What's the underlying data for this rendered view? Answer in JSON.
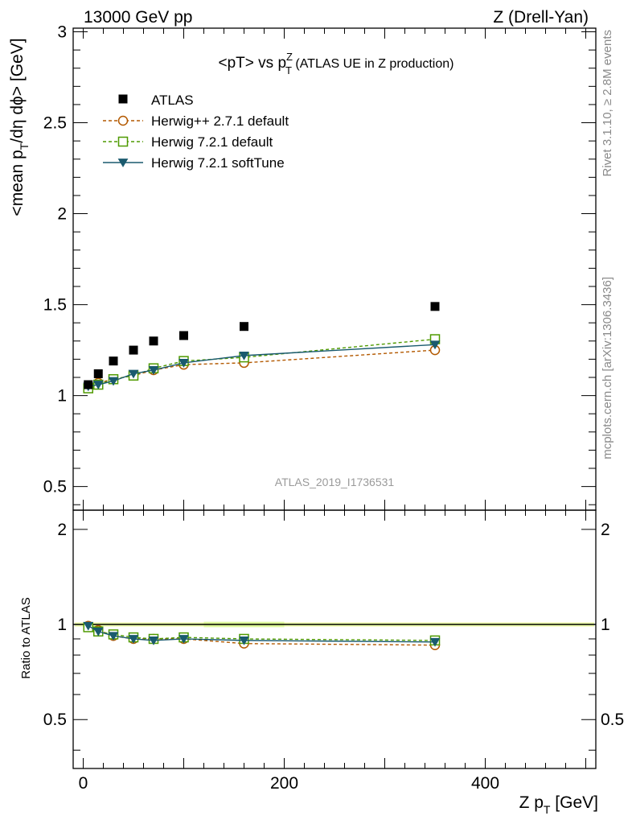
{
  "header": {
    "left": "13000 GeV pp",
    "right": "Z (Drell-Yan)"
  },
  "side_text": {
    "upper": "Rivet 3.1.10, ≥ 2.8M events",
    "lower": "mcplots.cern.ch [arXiv:1306.3436]"
  },
  "watermark": "ATLAS_2019_I1736531",
  "chart_data": {
    "type": "line",
    "title": "<pT> vs p_T^Z (ATLAS UE in Z production)",
    "xlabel": "Z p_T [GeV]",
    "ylabel": "<mean p_T/dη dϕ> [GeV]",
    "ratio_ylabel": "Ratio to ATLAS",
    "xlim": [
      -10,
      510
    ],
    "ylim": [
      0.37,
      3.02
    ],
    "ratio_ylim": [
      0.35,
      2.3
    ],
    "x_ticks": [
      0,
      200,
      400
    ],
    "y_ticks": [
      0.5,
      1,
      1.5,
      2,
      2.5,
      3
    ],
    "ratio_ticks": [
      0.5,
      1,
      2
    ],
    "x": [
      5,
      15,
      30,
      50,
      70,
      100,
      160,
      350
    ],
    "data_name": "ATLAS",
    "data_values": [
      1.06,
      1.12,
      1.19,
      1.25,
      1.3,
      1.33,
      1.38,
      1.49
    ],
    "series": [
      {
        "name": "Herwig++ 2.7.1 default",
        "color": "#b35900",
        "marker": "circle-open",
        "dashed": true,
        "values": [
          1.05,
          1.07,
          1.09,
          1.11,
          1.14,
          1.17,
          1.18,
          1.25
        ],
        "ratio": [
          0.99,
          0.96,
          0.92,
          0.9,
          0.9,
          0.9,
          0.87,
          0.86
        ]
      },
      {
        "name": "Herwig 7.2.1 default",
        "color": "#4f9a00",
        "marker": "square-open",
        "dashed": true,
        "values": [
          1.04,
          1.06,
          1.09,
          1.11,
          1.15,
          1.19,
          1.21,
          1.31
        ],
        "ratio": [
          0.98,
          0.95,
          0.93,
          0.91,
          0.9,
          0.91,
          0.9,
          0.89
        ]
      },
      {
        "name": "Herwig 7.2.1 softTune",
        "color": "#1a5a6e",
        "marker": "triangle-down-filled",
        "dashed": false,
        "values": [
          1.05,
          1.06,
          1.08,
          1.12,
          1.14,
          1.18,
          1.22,
          1.28
        ],
        "ratio": [
          0.99,
          0.95,
          0.92,
          0.9,
          0.89,
          0.9,
          0.89,
          0.88
        ]
      }
    ]
  }
}
